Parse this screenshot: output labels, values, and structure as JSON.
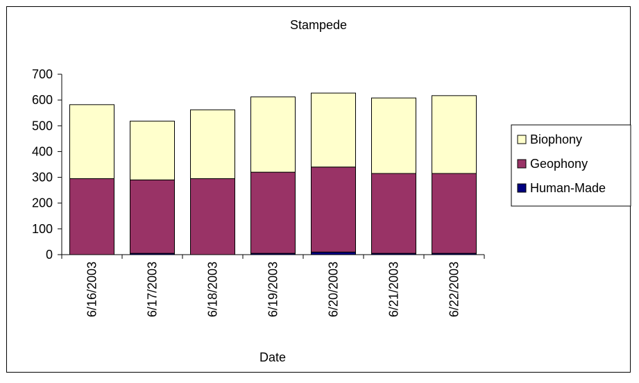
{
  "chart_data": {
    "type": "bar",
    "stacked": true,
    "title": "Stampede",
    "xlabel": "Date",
    "ylabel": "",
    "ylim": [
      0,
      700
    ],
    "yticks": [
      0,
      100,
      200,
      300,
      400,
      500,
      600,
      700
    ],
    "grid": false,
    "legend_position": "right",
    "categories": [
      "6/16/2003",
      "6/17/2003",
      "6/18/2003",
      "6/19/2003",
      "6/20/2003",
      "6/21/2003",
      "6/22/2003"
    ],
    "series": [
      {
        "name": "Human-Made",
        "color": "#000080",
        "values": [
          0,
          5,
          0,
          5,
          10,
          5,
          5
        ]
      },
      {
        "name": "Geophony",
        "color": "#993366",
        "values": [
          295,
          285,
          295,
          315,
          330,
          310,
          310
        ]
      },
      {
        "name": "Biophony",
        "color": "#FFFFCC",
        "values": [
          287,
          228,
          267,
          292,
          287,
          293,
          302
        ]
      }
    ],
    "legend_order": [
      "Biophony",
      "Geophony",
      "Human-Made"
    ]
  }
}
